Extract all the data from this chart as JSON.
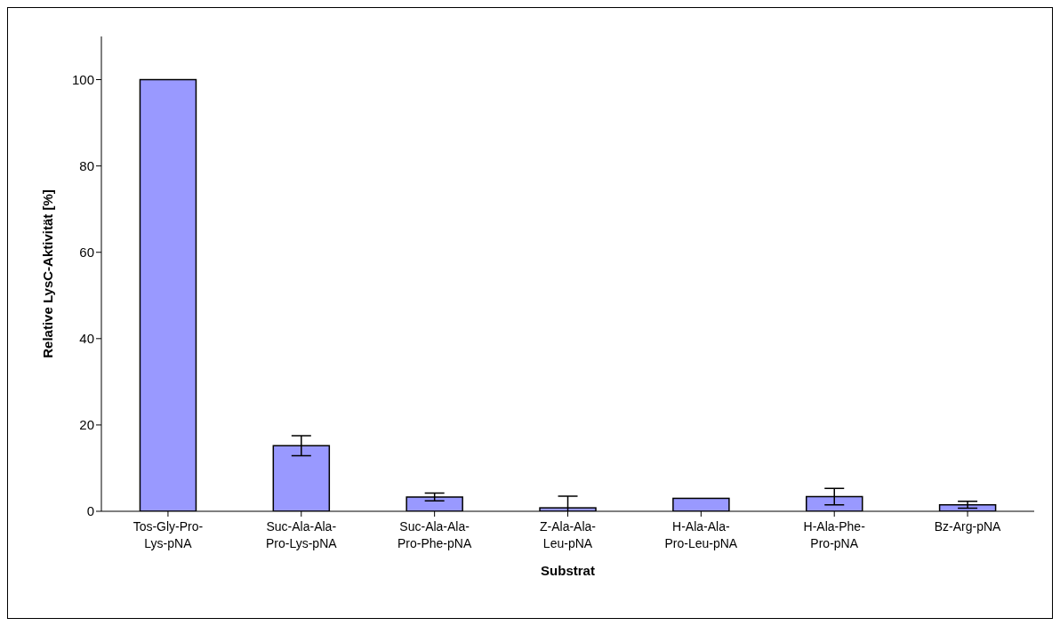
{
  "chart_data": {
    "type": "bar",
    "xlabel": "Substrat",
    "ylabel": "Relative LysC-Aktivität [%]",
    "categories": [
      "Tos-Gly-Pro-Lys-pNA",
      "Suc-Ala-Ala-Pro-Lys-pNA",
      "Suc-Ala-Ala-Pro-Phe-pNA",
      "Z-Ala-Ala-Leu-pNA",
      "H-Ala-Ala-Pro-Leu-pNA",
      "H-Ala-Phe-Pro-pNA",
      "Bz-Arg-pNA"
    ],
    "values": [
      100,
      15.2,
      3.3,
      0.8,
      3.0,
      3.4,
      1.5
    ],
    "errors": [
      null,
      2.3,
      0.9,
      2.7,
      null,
      1.9,
      0.8
    ],
    "color": "#9999ff",
    "ylim": [
      0,
      110
    ],
    "yticks": [
      0,
      20,
      40,
      60,
      80,
      100
    ]
  }
}
